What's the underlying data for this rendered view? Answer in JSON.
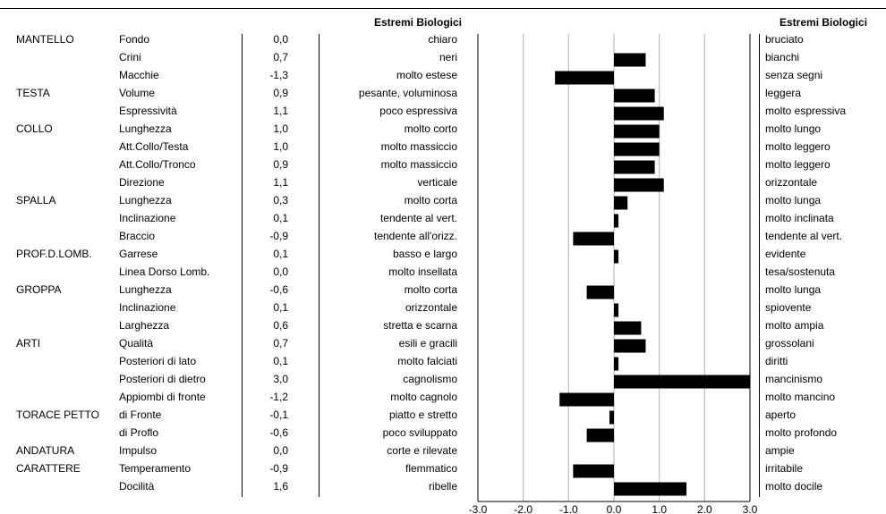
{
  "headers": {
    "left": "Estremi Biologici",
    "right": "Estremi Biologici"
  },
  "chart_data": {
    "type": "bar",
    "orientation": "horizontal",
    "xlim": [
      -3.0,
      3.0
    ],
    "xticks": [
      "-3.0",
      "-2.0",
      "-1.0",
      "0.0",
      "1.0",
      "2.0",
      "3.0"
    ],
    "grid": true,
    "rows": [
      {
        "group": "MANTELLO",
        "item": "Fondo",
        "value_label": "0,0",
        "value": 0.0,
        "low": "chiaro",
        "high": "bruciato"
      },
      {
        "group": "",
        "item": "Crini",
        "value_label": "0,7",
        "value": 0.7,
        "low": "neri",
        "high": "bianchi"
      },
      {
        "group": "",
        "item": "Macchie",
        "value_label": "-1,3",
        "value": -1.3,
        "low": "molto estese",
        "high": "senza segni"
      },
      {
        "group": "TESTA",
        "item": "Volume",
        "value_label": "0,9",
        "value": 0.9,
        "low": "pesante, voluminosa",
        "high": "leggera"
      },
      {
        "group": "",
        "item": "Espressività",
        "value_label": "1,1",
        "value": 1.1,
        "low": "poco espressiva",
        "high": "molto espressiva"
      },
      {
        "group": "COLLO",
        "item": "Lunghezza",
        "value_label": "1,0",
        "value": 1.0,
        "low": "molto corto",
        "high": "molto lungo"
      },
      {
        "group": "",
        "item": "Att.Collo/Testa",
        "value_label": "1,0",
        "value": 1.0,
        "low": "molto massiccio",
        "high": "molto leggero"
      },
      {
        "group": "",
        "item": "Att.Collo/Tronco",
        "value_label": "0,9",
        "value": 0.9,
        "low": "molto massiccio",
        "high": "molto leggero"
      },
      {
        "group": "",
        "item": "Direzione",
        "value_label": "1,1",
        "value": 1.1,
        "low": "verticale",
        "high": "orizzontale"
      },
      {
        "group": "SPALLA",
        "item": "Lunghezza",
        "value_label": "0,3",
        "value": 0.3,
        "low": "molto corta",
        "high": "molto lunga"
      },
      {
        "group": "",
        "item": "Inclinazione",
        "value_label": "0,1",
        "value": 0.1,
        "low": "tendente al vert.",
        "high": "molto inclinata"
      },
      {
        "group": "",
        "item": "Braccio",
        "value_label": "-0,9",
        "value": -0.9,
        "low": "tendente all'orizz.",
        "high": "tendente al vert."
      },
      {
        "group": "PROF.D.LOMB.",
        "item": "Garrese",
        "value_label": "0,1",
        "value": 0.1,
        "low": "basso e largo",
        "high": "evidente"
      },
      {
        "group": "",
        "item": "Linea Dorso Lomb.",
        "value_label": "0,0",
        "value": 0.0,
        "low": "molto insellata",
        "high": "tesa/sostenuta"
      },
      {
        "group": "GROPPA",
        "item": "Lunghezza",
        "value_label": "-0,6",
        "value": -0.6,
        "low": "molto corta",
        "high": "molto lunga"
      },
      {
        "group": "",
        "item": "Inclinazione",
        "value_label": "0,1",
        "value": 0.1,
        "low": "orizzontale",
        "high": "spiovente"
      },
      {
        "group": "",
        "item": "Larghezza",
        "value_label": "0,6",
        "value": 0.6,
        "low": "stretta e scarna",
        "high": "molto ampia"
      },
      {
        "group": "ARTI",
        "item": "Qualità",
        "value_label": "0,7",
        "value": 0.7,
        "low": "esili e gracili",
        "high": "grossolani"
      },
      {
        "group": "",
        "item": "Posteriori di lato",
        "value_label": "0,1",
        "value": 0.1,
        "low": "molto falciati",
        "high": "diritti"
      },
      {
        "group": "",
        "item": "Posteriori di dietro",
        "value_label": "3,0",
        "value": 3.0,
        "low": "cagnolismo",
        "high": "mancinismo"
      },
      {
        "group": "",
        "item": "Appiombi di fronte",
        "value_label": "-1,2",
        "value": -1.2,
        "low": "molto cagnolo",
        "high": "molto mancino"
      },
      {
        "group": "TORACE PETTO",
        "item": "di Fronte",
        "value_label": "-0,1",
        "value": -0.1,
        "low": "piatto e stretto",
        "high": "aperto"
      },
      {
        "group": "",
        "item": "di Proflo",
        "value_label": "-0,6",
        "value": -0.6,
        "low": "poco sviluppato",
        "high": "molto profondo"
      },
      {
        "group": "ANDATURA",
        "item": "Impulso",
        "value_label": "0,0",
        "value": 0.0,
        "low": "corte e rilevate",
        "high": "ampie"
      },
      {
        "group": "CARATTERE",
        "item": "Temperamento",
        "value_label": "-0,9",
        "value": -0.9,
        "low": "flemmatico",
        "high": "irritabile"
      },
      {
        "group": "",
        "item": "Docilità",
        "value_label": "1,6",
        "value": 1.6,
        "low": "ribelle",
        "high": "molto docile"
      }
    ]
  }
}
